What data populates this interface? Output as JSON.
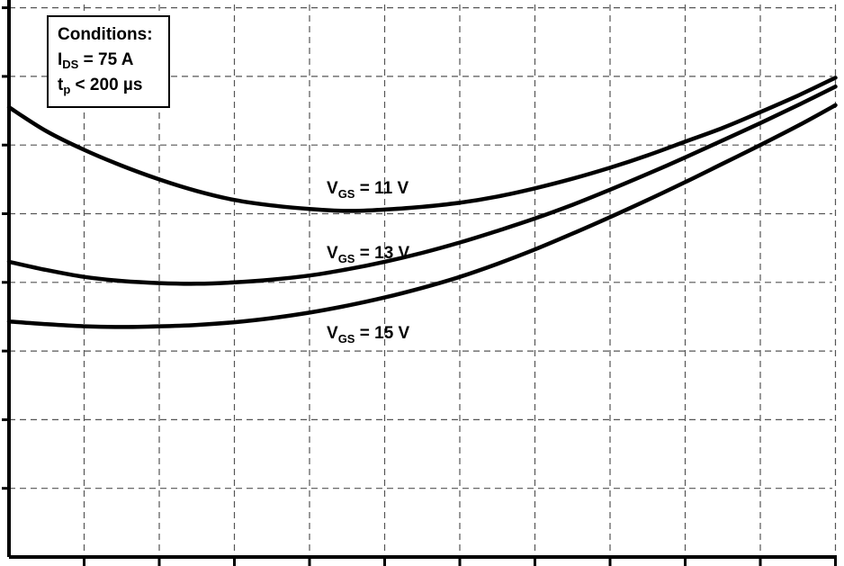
{
  "chart_data": {
    "type": "line",
    "title": "",
    "xlabel": "",
    "ylabel": "",
    "grid": true,
    "xlim": [
      0,
      11
    ],
    "ylim": [
      0,
      8
    ],
    "annotation": {
      "heading": "Conditions:",
      "lines": [
        {
          "main": "I",
          "sub": "DS",
          "rest": " = 75 A"
        },
        {
          "main": "t",
          "sub": "p",
          "rest": " < 200 µs"
        }
      ]
    },
    "series": [
      {
        "name": "V_GS = 11 V",
        "label": {
          "main": "V",
          "sub": "GS",
          "rest": " = 11 V"
        },
        "x": [
          0,
          0.5,
          1,
          1.5,
          2,
          2.5,
          3,
          3.5,
          4,
          4.5,
          5,
          5.5,
          6,
          6.5,
          7,
          7.5,
          8,
          8.5,
          9,
          9.5,
          10,
          10.5,
          11
        ],
        "y": [
          6.55,
          6.2,
          5.93,
          5.7,
          5.5,
          5.33,
          5.2,
          5.12,
          5.07,
          5.04,
          5.06,
          5.1,
          5.16,
          5.25,
          5.37,
          5.51,
          5.67,
          5.85,
          6.05,
          6.25,
          6.48,
          6.72,
          6.98
        ]
      },
      {
        "name": "V_GS = 13 V",
        "label": {
          "main": "V",
          "sub": "GS",
          "rest": " = 13 V"
        },
        "x": [
          0,
          0.5,
          1,
          1.5,
          2,
          2.5,
          3,
          3.5,
          4,
          4.5,
          5,
          5.5,
          6,
          6.5,
          7,
          7.5,
          8,
          8.5,
          9,
          9.5,
          10,
          10.5,
          11
        ],
        "y": [
          4.3,
          4.18,
          4.08,
          4.02,
          3.99,
          3.98,
          4.0,
          4.04,
          4.1,
          4.19,
          4.3,
          4.43,
          4.58,
          4.75,
          4.93,
          5.13,
          5.35,
          5.58,
          5.82,
          6.07,
          6.32,
          6.58,
          6.85
        ]
      },
      {
        "name": "V_GS = 15 V",
        "label": {
          "main": "V",
          "sub": "GS",
          "rest": " = 15 V"
        },
        "x": [
          0,
          0.5,
          1,
          1.5,
          2,
          2.5,
          3,
          3.5,
          4,
          4.5,
          5,
          5.5,
          6,
          6.5,
          7,
          7.5,
          8,
          8.5,
          9,
          9.5,
          10,
          10.5,
          11
        ],
        "y": [
          3.43,
          3.39,
          3.36,
          3.35,
          3.36,
          3.38,
          3.42,
          3.48,
          3.56,
          3.66,
          3.78,
          3.92,
          4.08,
          4.27,
          4.48,
          4.71,
          4.95,
          5.2,
          5.46,
          5.73,
          6.0,
          6.28,
          6.58
        ]
      }
    ]
  }
}
